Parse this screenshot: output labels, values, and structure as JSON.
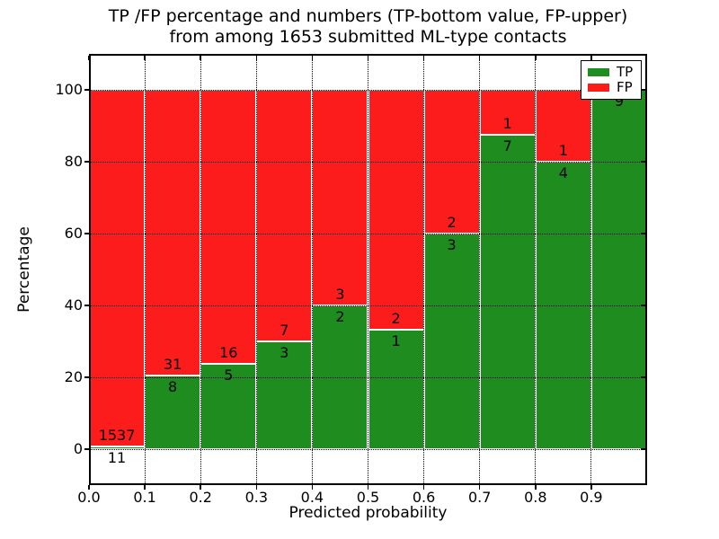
{
  "chart_data": {
    "type": "bar",
    "variant": "100-percent-stacked-histogram",
    "title_line1": "TP /FP percentage and numbers (TP-bottom value, FP-upper)",
    "title_line2": "from among 1653 submitted ML-type contacts",
    "total_submitted": 1653,
    "xlabel": "Predicted probability",
    "ylabel": "Percentage",
    "xlim": [
      0.0,
      1.0
    ],
    "ylim": [
      -10,
      110
    ],
    "grid": "dotted",
    "bin_edges": [
      0.0,
      0.1,
      0.2,
      0.3,
      0.4,
      0.5,
      0.6,
      0.7,
      0.8,
      0.9,
      1.0
    ],
    "categories": [
      "0.0-0.1",
      "0.1-0.2",
      "0.2-0.3",
      "0.3-0.4",
      "0.4-0.5",
      "0.5-0.6",
      "0.6-0.7",
      "0.7-0.8",
      "0.8-0.9",
      "0.9-1.0"
    ],
    "xticks": [
      "0.0",
      "0.1",
      "0.2",
      "0.3",
      "0.4",
      "0.5",
      "0.6",
      "0.7",
      "0.8",
      "0.9"
    ],
    "yticks": [
      "0",
      "20",
      "40",
      "60",
      "80",
      "100"
    ],
    "series": [
      {
        "name": "TP",
        "stack_position": "bottom",
        "color": "#1e8c1e",
        "counts": [
          11,
          8,
          5,
          3,
          2,
          1,
          3,
          7,
          4,
          9
        ],
        "percent": [
          0.71,
          20.51,
          23.81,
          30,
          40,
          33.33,
          60,
          87.5,
          80,
          100
        ]
      },
      {
        "name": "FP",
        "stack_position": "top",
        "color": "#fc1c1c",
        "counts": [
          1537,
          31,
          16,
          7,
          3,
          2,
          2,
          1,
          1,
          0
        ],
        "percent": [
          99.29,
          79.49,
          76.19,
          70,
          60,
          66.67,
          40,
          12.5,
          20,
          0
        ]
      }
    ],
    "bar_labels": {
      "tp": [
        "11",
        "8",
        "5",
        "3",
        "2",
        "1",
        "3",
        "7",
        "4",
        "9"
      ],
      "fp": [
        "1537",
        "31",
        "16",
        "7",
        "3",
        "2",
        "2",
        "1",
        "1",
        ""
      ]
    },
    "legend": {
      "position": "upper right",
      "entries": [
        {
          "label": "TP",
          "color": "#1e8c1e"
        },
        {
          "label": "FP",
          "color": "#fc1c1c"
        }
      ]
    }
  }
}
